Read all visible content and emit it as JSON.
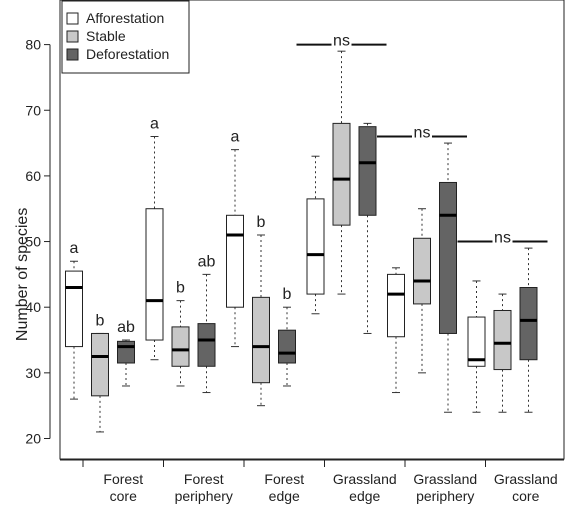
{
  "chart_data": {
    "type": "boxplot",
    "title": "",
    "xlabel": "",
    "ylabel": "Number of species",
    "ylim": [
      18,
      86
    ],
    "yticks": [
      20,
      30,
      40,
      50,
      60,
      70,
      80
    ],
    "grid": false,
    "legend_position": "top-left",
    "categories": [
      {
        "lines": [
          "Forest",
          "core"
        ]
      },
      {
        "lines": [
          "Forest",
          "periphery"
        ]
      },
      {
        "lines": [
          "Forest",
          "edge"
        ]
      },
      {
        "lines": [
          "Grassland",
          "edge"
        ]
      },
      {
        "lines": [
          "Grassland",
          "periphery"
        ]
      },
      {
        "lines": [
          "Grassland",
          "core"
        ]
      }
    ],
    "series": [
      {
        "name": "Afforestation",
        "color": "#ffffff"
      },
      {
        "name": "Stable",
        "color": "#c8c8c8"
      },
      {
        "name": "Deforestation",
        "color": "#646464"
      }
    ],
    "boxes": [
      [
        {
          "whisker_low": 26,
          "q1": 34,
          "median": 43,
          "q3": 45.5,
          "whisker_high": 47,
          "letter": "a"
        },
        {
          "whisker_low": 21,
          "q1": 26.5,
          "median": 32.5,
          "q3": 36,
          "whisker_high": 36,
          "letter": "b"
        },
        {
          "whisker_low": 28,
          "q1": 31.5,
          "median": 34,
          "q3": 34.8,
          "whisker_high": 35,
          "letter": "ab"
        }
      ],
      [
        {
          "whisker_low": 32,
          "q1": 35,
          "median": 41,
          "q3": 55,
          "whisker_high": 66,
          "letter": "a"
        },
        {
          "whisker_low": 28,
          "q1": 31,
          "median": 33.5,
          "q3": 37,
          "whisker_high": 41,
          "letter": "b"
        },
        {
          "whisker_low": 27,
          "q1": 31,
          "median": 35,
          "q3": 37.5,
          "whisker_high": 45,
          "letter": "ab"
        }
      ],
      [
        {
          "whisker_low": 34,
          "q1": 40,
          "median": 51,
          "q3": 54,
          "whisker_high": 64,
          "letter": "a"
        },
        {
          "whisker_low": 25,
          "q1": 28.5,
          "median": 34,
          "q3": 41.5,
          "whisker_high": 51,
          "letter": "b"
        },
        {
          "whisker_low": 28,
          "q1": 31.5,
          "median": 33,
          "q3": 36.5,
          "whisker_high": 40,
          "letter": "b"
        }
      ],
      [
        {
          "whisker_low": 39,
          "q1": 42,
          "median": 48,
          "q3": 56.5,
          "whisker_high": 63,
          "letter": ""
        },
        {
          "whisker_low": 42,
          "q1": 52.5,
          "median": 59.5,
          "q3": 68,
          "whisker_high": 79,
          "letter": ""
        },
        {
          "whisker_low": 36,
          "q1": 54,
          "median": 62,
          "q3": 67.5,
          "whisker_high": 68,
          "letter": ""
        }
      ],
      [
        {
          "whisker_low": 27,
          "q1": 35.5,
          "median": 42,
          "q3": 45,
          "whisker_high": 46,
          "letter": ""
        },
        {
          "whisker_low": 30,
          "q1": 40.5,
          "median": 44,
          "q3": 50.5,
          "whisker_high": 55,
          "letter": ""
        },
        {
          "whisker_low": 24,
          "q1": 36,
          "median": 54,
          "q3": 59,
          "whisker_high": 65,
          "letter": ""
        }
      ],
      [
        {
          "whisker_low": 24,
          "q1": 31,
          "median": 32,
          "q3": 38.5,
          "whisker_high": 44,
          "letter": ""
        },
        {
          "whisker_low": 24,
          "q1": 30.5,
          "median": 34.5,
          "q3": 39.5,
          "whisker_high": 42,
          "letter": ""
        },
        {
          "whisker_low": 24,
          "q1": 32,
          "median": 38,
          "q3": 43,
          "whisker_high": 49,
          "letter": ""
        }
      ]
    ],
    "significance_markers": [
      {
        "group": 3,
        "label": "ns",
        "y": 80
      },
      {
        "group": 4,
        "label": "ns",
        "y": 66
      },
      {
        "group": 5,
        "label": "ns",
        "y": 50
      }
    ]
  }
}
